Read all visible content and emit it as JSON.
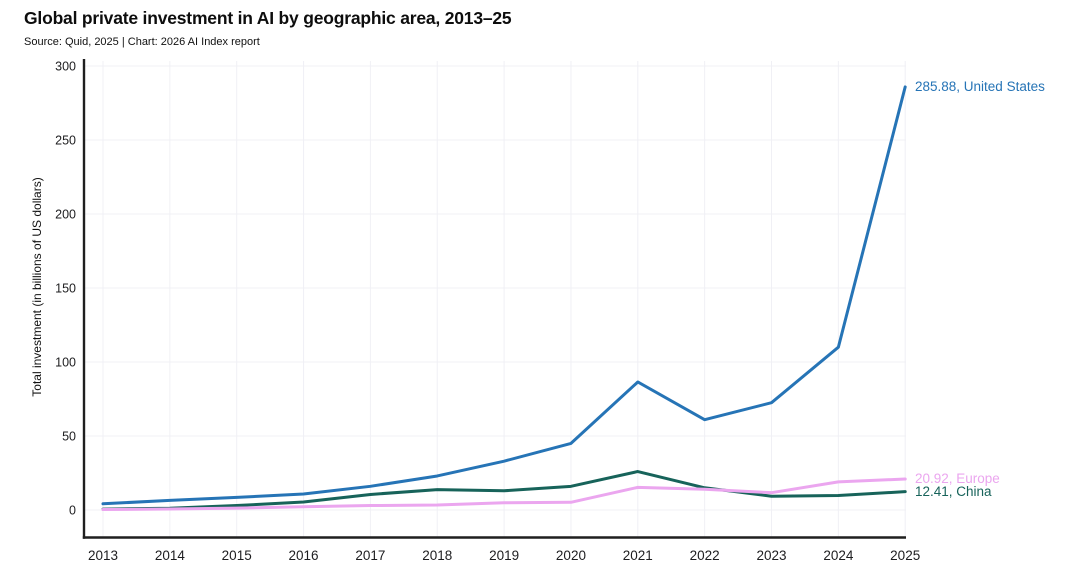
{
  "chart_data": {
    "type": "line",
    "title": "Global private investment in AI by geographic area, 2013–25",
    "subtitle": "Source: Quid, 2025 | Chart: 2026 AI Index report",
    "ylabel": "Total investment (in billions of US dollars)",
    "xlabel": "",
    "x": [
      2013,
      2014,
      2015,
      2016,
      2017,
      2018,
      2019,
      2020,
      2021,
      2022,
      2023,
      2024,
      2025
    ],
    "ylim": [
      0,
      300
    ],
    "yticks": [
      0,
      50,
      100,
      150,
      200,
      250,
      300
    ],
    "grid": true,
    "legend_position": "line-end-labels-right",
    "axis_color": "#1f1f1f",
    "grid_color": "#f0f0f5",
    "series": [
      {
        "name": "United States",
        "color": "#2674b6",
        "end_label": "285.88, United States",
        "values": [
          4.2,
          6.5,
          8.5,
          10.8,
          16,
          23,
          33,
          45,
          86.5,
          61,
          72.5,
          110,
          285.88
        ]
      },
      {
        "name": "Europe",
        "color": "#eba6ef",
        "end_label": "20.92, Europe",
        "values": [
          0.3,
          0.7,
          1.3,
          2.2,
          3,
          3.4,
          4.9,
          5.2,
          15.3,
          14,
          11.7,
          19,
          20.92
        ]
      },
      {
        "name": "China",
        "color": "#17635a",
        "end_label": "12.41, China",
        "values": [
          0.6,
          1.2,
          3,
          5.4,
          10.5,
          13.8,
          13,
          16,
          26,
          15,
          9.3,
          9.8,
          12.41
        ]
      }
    ]
  }
}
